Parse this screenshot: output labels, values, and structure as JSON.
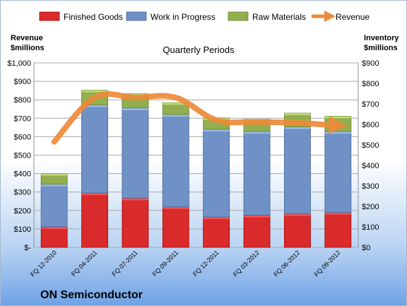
{
  "chart_data": {
    "type": "bar",
    "title": "Quarterly Periods",
    "company": "ON Semiconductor",
    "ylabel_left": [
      "Revenue",
      "$millions"
    ],
    "ylabel_right": [
      "Inventory",
      "$millions"
    ],
    "ylim_left": [
      0,
      1000
    ],
    "ylim_right": [
      0,
      900
    ],
    "yticks_left": [
      "$-",
      "$100",
      "$200",
      "$300",
      "$400",
      "$500",
      "$600",
      "$700",
      "$800",
      "$900",
      "$1,000"
    ],
    "yticks_right": [
      "$0",
      "$100",
      "$200",
      "$300",
      "$400",
      "$500",
      "$600",
      "$700",
      "$800",
      "$900"
    ],
    "grid": true,
    "legend_position": "top",
    "categories": [
      "FQ 12-2010",
      "FQ 04-2011",
      "FQ 07-2011",
      "FQ 09-2011",
      "FQ 12-2011",
      "FQ 03-2012",
      "FQ 06-2012",
      "FQ 09-2012"
    ],
    "series": [
      {
        "name": "Finished Goods",
        "axis": "right",
        "kind": "stacked-bar",
        "color": "#d92b2b",
        "values": [
          100,
          265,
          240,
          198,
          148,
          157,
          163,
          170
        ]
      },
      {
        "name": "Work in Progress",
        "axis": "right",
        "kind": "stacked-bar",
        "color": "#6f91c6",
        "values": [
          208,
          430,
          440,
          450,
          428,
          408,
          425,
          395
        ]
      },
      {
        "name": "Raw Materials",
        "axis": "right",
        "kind": "stacked-bar",
        "color": "#92ae4e",
        "values": [
          52,
          72,
          70,
          58,
          56,
          60,
          67,
          75
        ]
      },
      {
        "name": "Revenue",
        "axis": "left",
        "kind": "line",
        "color": "#ee8a3a",
        "values": [
          572,
          812,
          812,
          812,
          690,
          680,
          675,
          660
        ]
      }
    ]
  }
}
